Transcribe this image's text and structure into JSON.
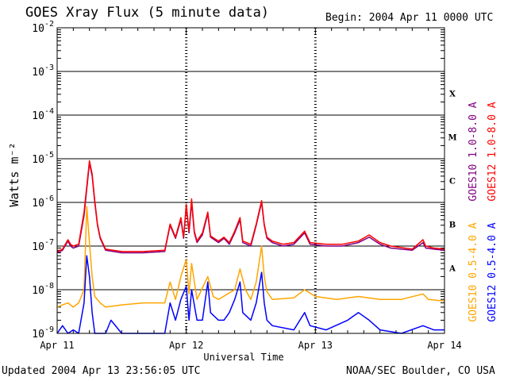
{
  "header": {
    "title": "GOES Xray Flux (5 minute data)",
    "begin": "Begin:  2004 Apr 11 0000 UTC"
  },
  "footer": {
    "updated": "Updated 2004 Apr 13 23:56:05 UTC",
    "credit": "NOAA/SEC Boulder, CO USA"
  },
  "chart_data": {
    "type": "line",
    "title": "GOES Xray Flux (5 minute data)",
    "xlabel": "Universal Time",
    "ylabel": "Watts m⁻²",
    "x_unit": "hours since 2004 Apr 11 0000 UTC",
    "xlim": [
      0,
      72
    ],
    "x_ticks": [
      {
        "x": 0,
        "label": "Apr 11"
      },
      {
        "x": 24,
        "label": "Apr 12"
      },
      {
        "x": 48,
        "label": "Apr 13"
      },
      {
        "x": 72,
        "label": "Apr 14"
      }
    ],
    "ylim": [
      1e-09,
      0.01
    ],
    "yscale": "log",
    "y_ticks": [
      {
        "value": 1e-09,
        "base": "10",
        "exp": "-9"
      },
      {
        "value": 1e-08,
        "base": "10",
        "exp": "-8"
      },
      {
        "value": 1e-07,
        "base": "10",
        "exp": "-7"
      },
      {
        "value": 1e-06,
        "base": "10",
        "exp": "-6"
      },
      {
        "value": 1e-05,
        "base": "10",
        "exp": "-5"
      },
      {
        "value": 0.0001,
        "base": "10",
        "exp": "-4"
      },
      {
        "value": 0.001,
        "base": "10",
        "exp": "-3"
      },
      {
        "value": 0.01,
        "base": "10",
        "exp": "-2"
      }
    ],
    "flare_classes": [
      {
        "label": "A",
        "value": 1e-08
      },
      {
        "label": "B",
        "value": 1e-07
      },
      {
        "label": "C",
        "value": 1e-06
      },
      {
        "label": "M",
        "value": 1e-05
      },
      {
        "label": "X",
        "value": 0.0001
      }
    ],
    "grid": true,
    "legend_placement": "right, vertical",
    "series": [
      {
        "name": "GOES10 1.0-8.0 A",
        "color": "#800080",
        "points": [
          [
            0,
            7e-08
          ],
          [
            1,
            8e-08
          ],
          [
            2,
            1.3e-07
          ],
          [
            2.5,
            1e-07
          ],
          [
            3,
            9e-08
          ],
          [
            4,
            1e-07
          ],
          [
            5,
            5e-07
          ],
          [
            6,
            8e-06
          ],
          [
            6.5,
            4e-06
          ],
          [
            7,
            1e-06
          ],
          [
            7.5,
            3e-07
          ],
          [
            8,
            1.5e-07
          ],
          [
            9,
            8e-08
          ],
          [
            12,
            7e-08
          ],
          [
            16,
            7e-08
          ],
          [
            20,
            7.5e-08
          ],
          [
            21,
            3e-07
          ],
          [
            22,
            1.5e-07
          ],
          [
            23,
            4e-07
          ],
          [
            23.5,
            1.5e-07
          ],
          [
            24,
            8e-07
          ],
          [
            24.5,
            2e-07
          ],
          [
            25,
            1e-06
          ],
          [
            25.5,
            2e-07
          ],
          [
            26,
            1.2e-07
          ],
          [
            27,
            1.8e-07
          ],
          [
            28,
            5.5e-07
          ],
          [
            28.5,
            1.6e-07
          ],
          [
            30,
            1.2e-07
          ],
          [
            31,
            1.5e-07
          ],
          [
            32,
            1.1e-07
          ],
          [
            33,
            2e-07
          ],
          [
            34,
            4e-07
          ],
          [
            34.5,
            1.2e-07
          ],
          [
            36,
            1e-07
          ],
          [
            37,
            3e-07
          ],
          [
            38,
            1e-06
          ],
          [
            38.5,
            3e-07
          ],
          [
            39,
            1.5e-07
          ],
          [
            40,
            1.2e-07
          ],
          [
            42,
            1e-07
          ],
          [
            44,
            1.1e-07
          ],
          [
            46,
            2e-07
          ],
          [
            47,
            1.1e-07
          ],
          [
            50,
            1e-07
          ],
          [
            53,
            1e-07
          ],
          [
            56,
            1.2e-07
          ],
          [
            58,
            1.6e-07
          ],
          [
            60,
            1.1e-07
          ],
          [
            62,
            9e-08
          ],
          [
            66,
            8e-08
          ],
          [
            68,
            1.2e-07
          ],
          [
            68.5,
            9e-08
          ],
          [
            70,
            8.5e-08
          ],
          [
            72,
            8e-08
          ]
        ]
      },
      {
        "name": "GOES12 1.0-8.0 A",
        "color": "#ff0000",
        "points": [
          [
            0,
            7.5e-08
          ],
          [
            1,
            8.5e-08
          ],
          [
            2,
            1.4e-07
          ],
          [
            2.5,
            1.1e-07
          ],
          [
            3,
            1e-07
          ],
          [
            4,
            1.1e-07
          ],
          [
            5,
            6e-07
          ],
          [
            6,
            9e-06
          ],
          [
            6.5,
            4.5e-06
          ],
          [
            7,
            1.1e-06
          ],
          [
            7.5,
            3.2e-07
          ],
          [
            8,
            1.6e-07
          ],
          [
            9,
            8.5e-08
          ],
          [
            12,
            7.5e-08
          ],
          [
            16,
            7.5e-08
          ],
          [
            20,
            8e-08
          ],
          [
            21,
            3.2e-07
          ],
          [
            22,
            1.6e-07
          ],
          [
            23,
            4.5e-07
          ],
          [
            23.5,
            1.6e-07
          ],
          [
            24,
            9e-07
          ],
          [
            24.5,
            2.2e-07
          ],
          [
            25,
            1.2e-06
          ],
          [
            25.5,
            2.2e-07
          ],
          [
            26,
            1.3e-07
          ],
          [
            27,
            2e-07
          ],
          [
            28,
            6e-07
          ],
          [
            28.5,
            1.7e-07
          ],
          [
            30,
            1.3e-07
          ],
          [
            31,
            1.6e-07
          ],
          [
            32,
            1.2e-07
          ],
          [
            33,
            2.2e-07
          ],
          [
            34,
            4.5e-07
          ],
          [
            34.5,
            1.3e-07
          ],
          [
            36,
            1.1e-07
          ],
          [
            37,
            3.2e-07
          ],
          [
            38,
            1.1e-06
          ],
          [
            38.5,
            3.2e-07
          ],
          [
            39,
            1.6e-07
          ],
          [
            40,
            1.3e-07
          ],
          [
            42,
            1.1e-07
          ],
          [
            44,
            1.2e-07
          ],
          [
            46,
            2.2e-07
          ],
          [
            47,
            1.2e-07
          ],
          [
            50,
            1.1e-07
          ],
          [
            53,
            1.1e-07
          ],
          [
            56,
            1.3e-07
          ],
          [
            58,
            1.8e-07
          ],
          [
            60,
            1.2e-07
          ],
          [
            62,
            1e-07
          ],
          [
            66,
            8.5e-08
          ],
          [
            68,
            1.4e-07
          ],
          [
            68.5,
            1e-07
          ],
          [
            70,
            9e-08
          ],
          [
            72,
            8.5e-08
          ]
        ]
      },
      {
        "name": "GOES10 0.5-4.0 A",
        "color": "#ffa500",
        "points": [
          [
            0,
            4e-09
          ],
          [
            1,
            4.5e-09
          ],
          [
            2,
            5e-09
          ],
          [
            3,
            4e-09
          ],
          [
            4,
            5e-09
          ],
          [
            5,
            1e-08
          ],
          [
            5.5,
            8e-07
          ],
          [
            6,
            1.2e-07
          ],
          [
            6.5,
            2e-08
          ],
          [
            7,
            7e-09
          ],
          [
            8,
            5e-09
          ],
          [
            9,
            4e-09
          ],
          [
            12,
            4.5e-09
          ],
          [
            16,
            5e-09
          ],
          [
            20,
            5e-09
          ],
          [
            21,
            1.5e-08
          ],
          [
            22,
            6e-09
          ],
          [
            23,
            2e-08
          ],
          [
            24,
            5e-08
          ],
          [
            24.5,
            8e-09
          ],
          [
            25,
            4e-08
          ],
          [
            26,
            6e-09
          ],
          [
            28,
            2e-08
          ],
          [
            29,
            7e-09
          ],
          [
            30,
            6e-09
          ],
          [
            33,
            1e-08
          ],
          [
            34,
            3e-08
          ],
          [
            35,
            1e-08
          ],
          [
            36,
            6e-09
          ],
          [
            37,
            1.5e-08
          ],
          [
            38,
            1e-07
          ],
          [
            38.5,
            2e-08
          ],
          [
            39,
            9e-09
          ],
          [
            40,
            6e-09
          ],
          [
            44,
            6.5e-09
          ],
          [
            46,
            1e-08
          ],
          [
            48,
            7e-09
          ],
          [
            52,
            6e-09
          ],
          [
            56,
            7e-09
          ],
          [
            60,
            6e-09
          ],
          [
            64,
            6e-09
          ],
          [
            68,
            8e-09
          ],
          [
            69,
            6e-09
          ],
          [
            72,
            5.5e-09
          ]
        ]
      },
      {
        "name": "GOES12 0.5-4.0 A",
        "color": "#0000ff",
        "points": [
          [
            0,
            1e-09
          ],
          [
            1,
            1.5e-09
          ],
          [
            2,
            1e-09
          ],
          [
            3,
            1.2e-09
          ],
          [
            4,
            1e-09
          ],
          [
            5,
            5e-09
          ],
          [
            5.5,
            6e-08
          ],
          [
            6,
            2e-08
          ],
          [
            6.5,
            3e-09
          ],
          [
            7,
            1e-09
          ],
          [
            9,
            1e-09
          ],
          [
            10,
            2e-09
          ],
          [
            12,
            1e-09
          ],
          [
            16,
            1e-09
          ],
          [
            20,
            1e-09
          ],
          [
            21,
            5e-09
          ],
          [
            22,
            2e-09
          ],
          [
            23,
            6e-09
          ],
          [
            24,
            1.2e-08
          ],
          [
            24.5,
            2e-09
          ],
          [
            25,
            1e-08
          ],
          [
            26,
            2e-09
          ],
          [
            27,
            2e-09
          ],
          [
            28,
            1.5e-08
          ],
          [
            28.5,
            3e-09
          ],
          [
            30,
            2e-09
          ],
          [
            31,
            2e-09
          ],
          [
            32,
            3e-09
          ],
          [
            33,
            6e-09
          ],
          [
            34,
            1.5e-08
          ],
          [
            34.5,
            3e-09
          ],
          [
            36,
            2e-09
          ],
          [
            37,
            5e-09
          ],
          [
            38,
            2.5e-08
          ],
          [
            38.5,
            5e-09
          ],
          [
            39,
            2e-09
          ],
          [
            40,
            1.5e-09
          ],
          [
            44,
            1.2e-09
          ],
          [
            46,
            3e-09
          ],
          [
            47,
            1.5e-09
          ],
          [
            50,
            1.2e-09
          ],
          [
            54,
            2e-09
          ],
          [
            56,
            3e-09
          ],
          [
            58,
            2e-09
          ],
          [
            60,
            1.2e-09
          ],
          [
            64,
            1e-09
          ],
          [
            68,
            1.5e-09
          ],
          [
            70,
            1.2e-09
          ],
          [
            72,
            1.2e-09
          ]
        ]
      }
    ]
  }
}
